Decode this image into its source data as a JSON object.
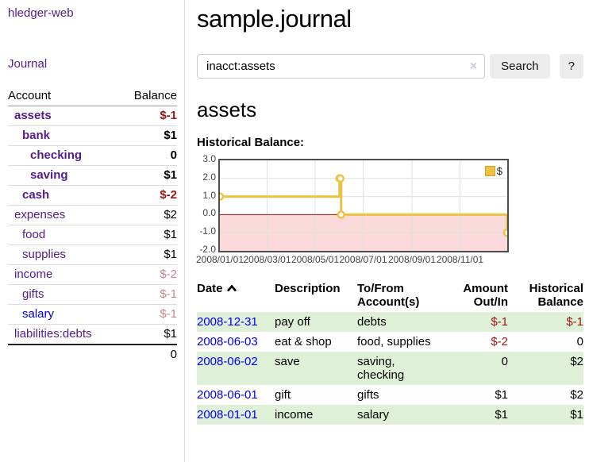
{
  "sidebar": {
    "brand": "hledger-web",
    "journal_link": "Journal",
    "table": {
      "account_header": "Account",
      "balance_header": "Balance",
      "rows": [
        {
          "account": "assets",
          "balance": "$-1",
          "depth": 1,
          "active": true,
          "account_class": "",
          "balance_class": "neg-strong"
        },
        {
          "account": "bank",
          "balance": "$1",
          "depth": 2,
          "active": true,
          "account_class": "",
          "balance_class": ""
        },
        {
          "account": "checking",
          "balance": "0",
          "depth": 3,
          "active": true,
          "account_class": "",
          "balance_class": ""
        },
        {
          "account": "saving",
          "balance": "$1",
          "depth": 3,
          "active": true,
          "account_class": "",
          "balance_class": ""
        },
        {
          "account": "cash",
          "balance": "$-2",
          "depth": 2,
          "active": true,
          "account_class": "",
          "balance_class": "neg-strong"
        },
        {
          "account": "expenses",
          "balance": "$2",
          "depth": 1,
          "active": false,
          "account_class": "",
          "balance_class": ""
        },
        {
          "account": "food",
          "balance": "$1",
          "depth": 2,
          "active": false,
          "account_class": "",
          "balance_class": ""
        },
        {
          "account": "supplies",
          "balance": "$1",
          "depth": 2,
          "active": false,
          "account_class": "",
          "balance_class": ""
        },
        {
          "account": "income",
          "balance": "$-2",
          "depth": 1,
          "active": false,
          "account_class": "",
          "balance_class": "neg-soft"
        },
        {
          "account": "gifts",
          "balance": "$-1",
          "depth": 2,
          "active": false,
          "account_class": "",
          "balance_class": "neg-soft"
        },
        {
          "account": "salary",
          "balance": "$-1",
          "depth": 2,
          "active": false,
          "account_class": "link-blue",
          "balance_class": "neg-soft"
        },
        {
          "account": "liabilities:debts",
          "balance": "$1",
          "depth": 1,
          "active": false,
          "account_class": "",
          "balance_class": ""
        }
      ],
      "total": "0"
    }
  },
  "header": {
    "title": "sample.journal"
  },
  "search": {
    "value": "inacct:assets",
    "clear_icon": "×",
    "button_label": "Search",
    "help_label": "?"
  },
  "account_page": {
    "title": "assets",
    "chart_title": "Historical Balance:"
  },
  "chart_data": {
    "type": "line",
    "step": true,
    "title": "Historical Balance:",
    "series": [
      {
        "name": "$",
        "color": "#edc240",
        "points": [
          [
            "2008-01-01",
            1
          ],
          [
            "2008-06-01",
            2
          ],
          [
            "2008-06-02",
            2
          ],
          [
            "2008-06-03",
            0
          ],
          [
            "2008-12-31",
            -1
          ]
        ]
      }
    ],
    "x_range": [
      "2008-01-01",
      "2008-12-31"
    ],
    "x_ticks": [
      "2008/01/01",
      "2008/03/01",
      "2008/05/01",
      "2008/07/01",
      "2008/09/01",
      "2008/11/01"
    ],
    "y_ticks": [
      3.0,
      2.0,
      1.0,
      0.0,
      -1.0,
      -2.0
    ],
    "y_tick_labels": [
      "3.0",
      "2.0",
      "1.0",
      "0.0",
      "-1.0",
      "-2.0"
    ],
    "ylim": [
      -2,
      3
    ],
    "grid": true,
    "legend_position": "top-right",
    "legend_label": "$",
    "negative_region_color": "#f9d9d9",
    "zero_line_color": "#8b1111",
    "grid_color": "#e0e0e0"
  },
  "register": {
    "columns": {
      "date": "Date",
      "description": "Description",
      "accounts": "To/From Account(s)",
      "amount": "Amount Out/In",
      "balance": "Historical Balance"
    },
    "sort": "ascending",
    "rows": [
      {
        "date": "2008-12-31",
        "description": "pay off",
        "accounts": "debts",
        "amount": "$-1",
        "balance": "$-1",
        "amount_neg": true,
        "balance_neg": true
      },
      {
        "date": "2008-06-03",
        "description": "eat & shop",
        "accounts": "food, supplies",
        "amount": "$-2",
        "balance": "0",
        "amount_neg": true,
        "balance_neg": false
      },
      {
        "date": "2008-06-02",
        "description": "save",
        "accounts": "saving, checking",
        "amount": "0",
        "balance": "$2",
        "amount_neg": false,
        "balance_neg": false
      },
      {
        "date": "2008-06-01",
        "description": "gift",
        "accounts": "gifts",
        "amount": "$1",
        "balance": "$2",
        "amount_neg": false,
        "balance_neg": false
      },
      {
        "date": "2008-01-01",
        "description": "income",
        "accounts": "salary",
        "amount": "$1",
        "balance": "$1",
        "amount_neg": false,
        "balance_neg": false
      }
    ]
  }
}
